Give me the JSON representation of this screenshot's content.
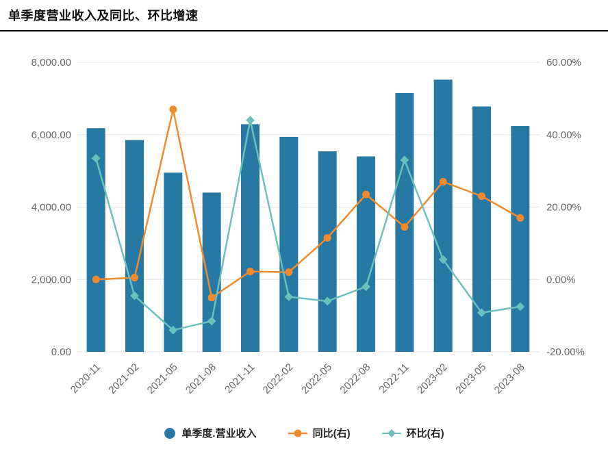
{
  "header": {
    "title": "单季度营业收入及同比、环比增速"
  },
  "chart_data": {
    "type": "bar",
    "subtype": "combo-bar-line",
    "title": "单季度营业收入及同比、环比增速",
    "categories": [
      "2020-11",
      "2021-02",
      "2021-05",
      "2021-08",
      "2021-11",
      "2022-02",
      "2022-05",
      "2022-08",
      "2022-11",
      "2023-02",
      "2023-05",
      "2023-08"
    ],
    "bar_series": {
      "name": "单季度.营业收入",
      "axis": "left",
      "color": "#2878a4",
      "values": [
        6180,
        5850,
        4950,
        4400,
        6290,
        5940,
        5540,
        5400,
        7150,
        7520,
        6780,
        6240
      ]
    },
    "line_series": [
      {
        "name": "同比(右)",
        "axis": "right",
        "color": "#f08a2d",
        "marker": "circle",
        "values": [
          0.0,
          0.5,
          47.0,
          -5.0,
          2.2,
          2.0,
          11.5,
          23.5,
          14.5,
          27.0,
          23.0,
          17.0
        ]
      },
      {
        "name": "环比(右)",
        "axis": "right",
        "color": "#6cc0bc",
        "marker": "diamond",
        "values": [
          33.5,
          -4.5,
          -14.0,
          -11.5,
          44.0,
          -4.8,
          -6.0,
          -2.0,
          33.0,
          5.5,
          -9.2,
          -7.5
        ]
      }
    ],
    "left_axis": {
      "min": 0,
      "max": 8000,
      "tick_values": [
        8000,
        6000,
        4000,
        2000,
        0
      ],
      "ticks": [
        "8,000.00",
        "6,000.00",
        "4,000.00",
        "2,000.00",
        "0.00"
      ]
    },
    "right_axis": {
      "min": -20,
      "max": 60,
      "tick_values": [
        60,
        40,
        20,
        0,
        -20
      ],
      "ticks": [
        "60.00%",
        "40.00%",
        "20.00%",
        "0.00%",
        "-20.00%"
      ]
    },
    "grid": "horizontal",
    "legend_position": "bottom",
    "colors": {
      "grid_line": "#e4e4e4",
      "axis_text": "#666666"
    }
  },
  "legend": {
    "items": [
      {
        "label": "单季度.营业收入"
      },
      {
        "label": "同比(右)"
      },
      {
        "label": "环比(右)"
      }
    ]
  }
}
